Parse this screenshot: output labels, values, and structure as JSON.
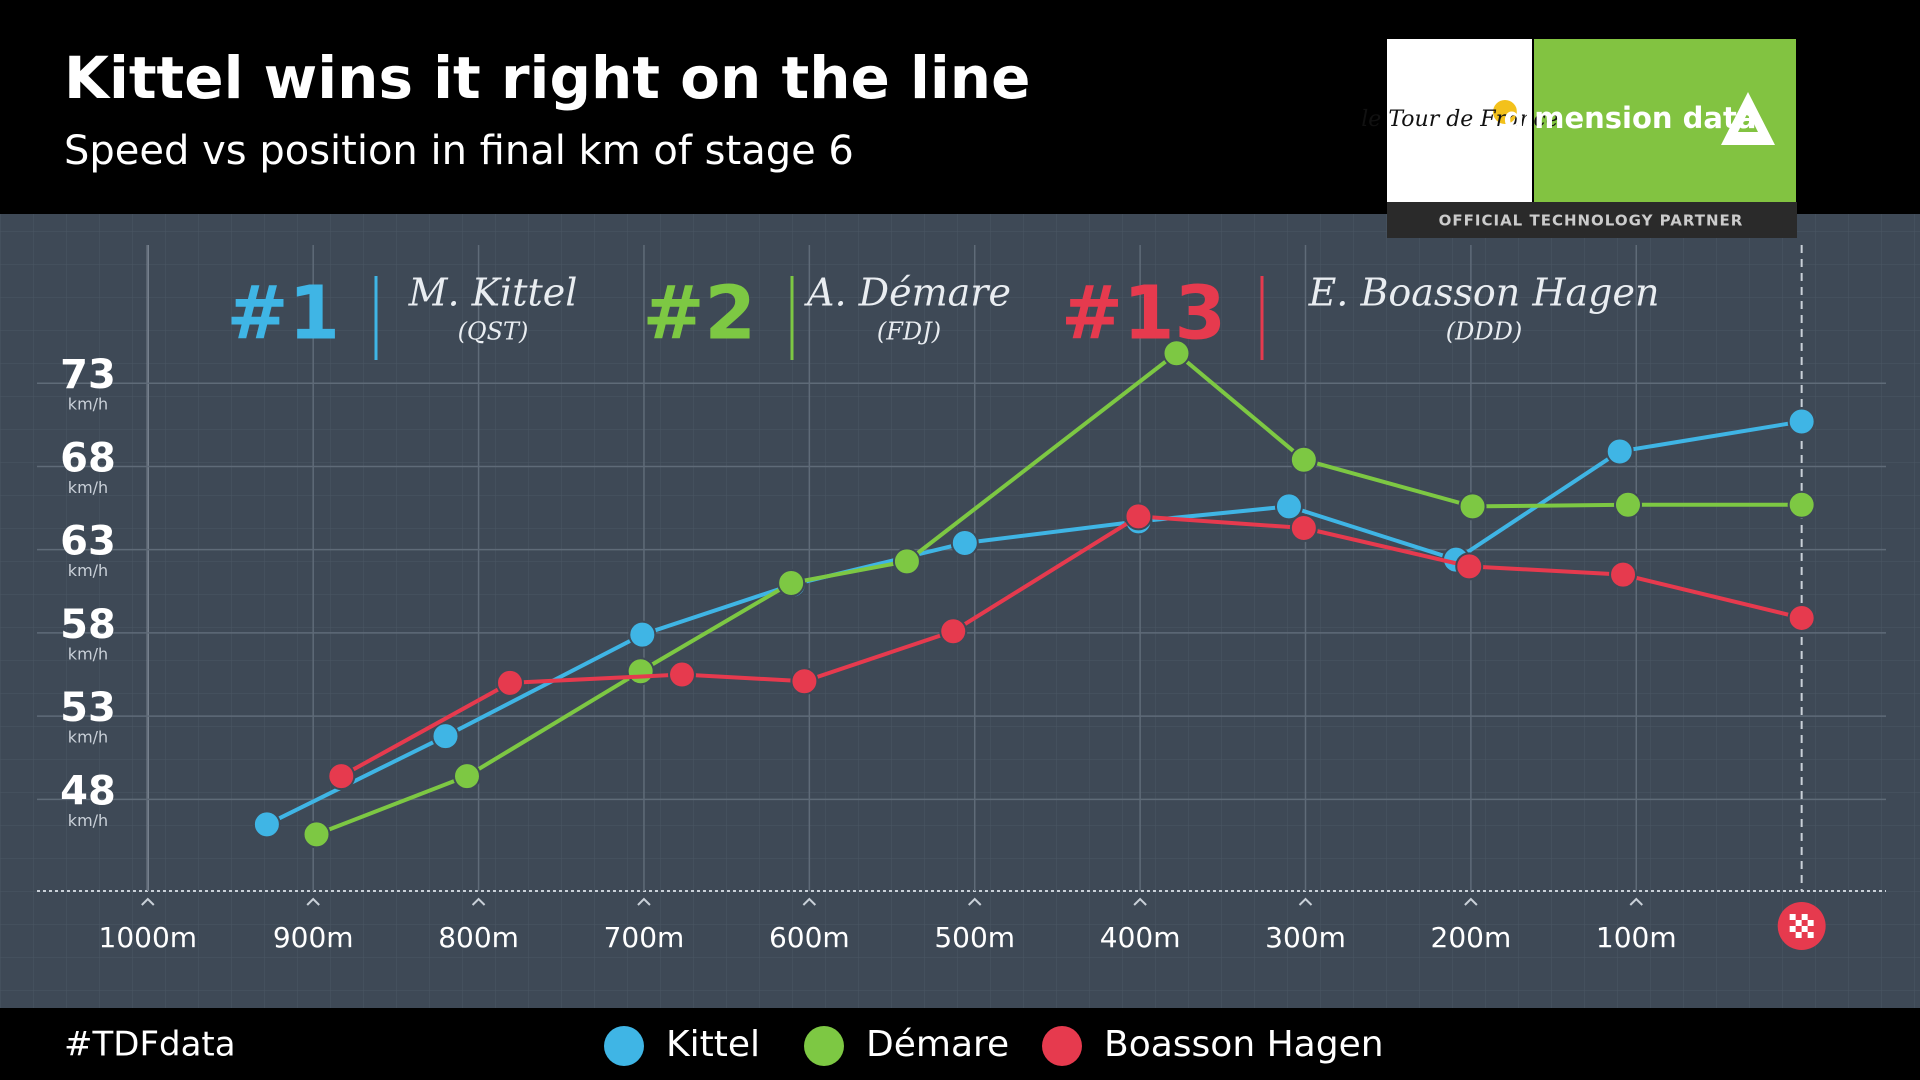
{
  "chart_data": {
    "type": "line",
    "title": "Kittel wins it right on the line",
    "subtitle": "Speed vs position in final km of stage 6",
    "y_unit": "km/h",
    "hashtag": "#TDFdata",
    "sponsor": {
      "tour": "le Tour de France",
      "name": "dimension data",
      "tagline": "OFFICIAL TECHNOLOGY PARTNER"
    },
    "annotations": [
      {
        "rank": "#1",
        "rider": "M. Kittel",
        "team": "(QST)",
        "color": "#3fb5e5"
      },
      {
        "rank": "#2",
        "rider": "A. Démare",
        "team": "(FDJ)",
        "color": "#7dc843"
      },
      {
        "rank": "#13",
        "rider": "E. Boasson Hagen",
        "team": "(DDD)",
        "color": "#e63a4e"
      }
    ],
    "xlim": [
      1067,
      -51
    ],
    "xticks": [
      {
        "value": 1000,
        "label": "1000m"
      },
      {
        "value": 900,
        "label": "900m"
      },
      {
        "value": 800,
        "label": "800m"
      },
      {
        "value": 700,
        "label": "700m"
      },
      {
        "value": 600,
        "label": "600m"
      },
      {
        "value": 500,
        "label": "500m"
      },
      {
        "value": 400,
        "label": "400m"
      },
      {
        "value": 300,
        "label": "300m"
      },
      {
        "value": 200,
        "label": "200m"
      },
      {
        "value": 100,
        "label": "100m"
      },
      0
    ],
    "ylim": [
      42.5,
      81.3
    ],
    "yticks": [
      48,
      53,
      58,
      63,
      68,
      73
    ],
    "grid": true,
    "series": [
      {
        "name": "Kittel",
        "color": "#3fb5e5",
        "x": [
          928,
          820,
          701,
          610,
          506,
          401,
          310,
          209,
          110,
          0
        ],
        "values": [
          46.5,
          51.8,
          57.9,
          60.9,
          63.4,
          64.7,
          65.6,
          62.4,
          68.9,
          70.7
        ]
      },
      {
        "name": "Démare",
        "color": "#7dc843",
        "x": [
          898,
          807,
          702,
          611,
          541,
          378,
          301,
          199,
          105,
          0
        ],
        "values": [
          45.9,
          49.4,
          55.7,
          61.0,
          62.3,
          74.8,
          68.4,
          65.6,
          65.7,
          65.7
        ]
      },
      {
        "name": "Boasson Hagen",
        "color": "#e63a4e",
        "x": [
          883,
          781,
          677,
          603,
          513,
          401,
          301,
          201,
          108,
          0
        ],
        "values": [
          49.4,
          55.0,
          55.5,
          55.1,
          58.1,
          65.0,
          64.3,
          62.0,
          61.5,
          58.9
        ]
      }
    ]
  }
}
